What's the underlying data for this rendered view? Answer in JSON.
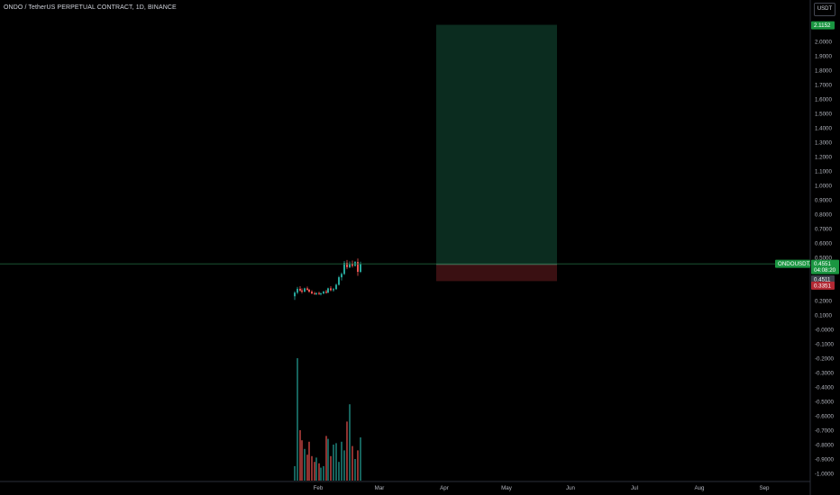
{
  "header": {
    "title": "ONDO / TetherUS PERPETUAL CONTRACT, 1D, BINANCE"
  },
  "price_axis": {
    "currency": "USDT"
  },
  "badges": {
    "target": "2.1152",
    "symbol": "ONDOUSDT.P",
    "last": "0.4551",
    "countdown": "04:08:20",
    "entry": "0.4511",
    "stop": "0.3351"
  },
  "colors": {
    "background": "#000000",
    "up": "#26a69a",
    "down": "#ef5350",
    "profit_zone": "#0b2c1f",
    "loss_zone": "#3a1012",
    "badge_green": "#1a9641",
    "badge_red": "#b22833",
    "axis_text": "#b2b5be"
  },
  "chart_data": {
    "type": "candlestick",
    "symbol": "ONDOUSDT.P",
    "timeframe": "1D",
    "exchange": "BINANCE",
    "x_ticks": [
      "Feb",
      "Mar",
      "Apr",
      "May",
      "Jun",
      "Jul",
      "Aug",
      "Sep"
    ],
    "y_ticks": [
      "2.0000",
      "1.9000",
      "1.8000",
      "1.7000",
      "1.6000",
      "1.5000",
      "1.4000",
      "1.3000",
      "1.2000",
      "1.1000",
      "1.0000",
      "0.9000",
      "0.8000",
      "0.7000",
      "0.6000",
      "0.5000",
      "0.4000",
      "0.3000",
      "0.2000",
      "0.1000",
      "-0.0000",
      "-0.1000",
      "-0.2000",
      "-0.3000",
      "-0.4000",
      "-0.5000",
      "-0.6000",
      "-0.7000",
      "-0.8000",
      "-0.9000",
      "-1.0000"
    ],
    "ylim": [
      -1.05,
      2.12
    ],
    "last_price": 0.4551,
    "position": {
      "type": "long",
      "entry": 0.4511,
      "target": 2.1152,
      "stop": 0.3351,
      "start": "Mar 19",
      "end": "Jun 15"
    },
    "candles": [
      {
        "o": 0.23,
        "h": 0.265,
        "l": 0.205,
        "c": 0.255
      },
      {
        "o": 0.255,
        "h": 0.295,
        "l": 0.245,
        "c": 0.282
      },
      {
        "o": 0.282,
        "h": 0.3,
        "l": 0.262,
        "c": 0.27
      },
      {
        "o": 0.27,
        "h": 0.285,
        "l": 0.25,
        "c": 0.262
      },
      {
        "o": 0.262,
        "h": 0.29,
        "l": 0.258,
        "c": 0.285
      },
      {
        "o": 0.285,
        "h": 0.298,
        "l": 0.268,
        "c": 0.275
      },
      {
        "o": 0.275,
        "h": 0.282,
        "l": 0.255,
        "c": 0.262
      },
      {
        "o": 0.262,
        "h": 0.272,
        "l": 0.244,
        "c": 0.25
      },
      {
        "o": 0.25,
        "h": 0.262,
        "l": 0.24,
        "c": 0.245
      },
      {
        "o": 0.245,
        "h": 0.256,
        "l": 0.238,
        "c": 0.252
      },
      {
        "o": 0.252,
        "h": 0.262,
        "l": 0.24,
        "c": 0.246
      },
      {
        "o": 0.246,
        "h": 0.256,
        "l": 0.236,
        "c": 0.25
      },
      {
        "o": 0.25,
        "h": 0.268,
        "l": 0.244,
        "c": 0.262
      },
      {
        "o": 0.262,
        "h": 0.275,
        "l": 0.248,
        "c": 0.255
      },
      {
        "o": 0.255,
        "h": 0.29,
        "l": 0.252,
        "c": 0.285
      },
      {
        "o": 0.285,
        "h": 0.3,
        "l": 0.265,
        "c": 0.272
      },
      {
        "o": 0.272,
        "h": 0.288,
        "l": 0.262,
        "c": 0.28
      },
      {
        "o": 0.28,
        "h": 0.318,
        "l": 0.275,
        "c": 0.31
      },
      {
        "o": 0.31,
        "h": 0.372,
        "l": 0.305,
        "c": 0.362
      },
      {
        "o": 0.362,
        "h": 0.395,
        "l": 0.34,
        "c": 0.385
      },
      {
        "o": 0.385,
        "h": 0.475,
        "l": 0.378,
        "c": 0.462
      },
      {
        "o": 0.462,
        "h": 0.482,
        "l": 0.418,
        "c": 0.432
      },
      {
        "o": 0.432,
        "h": 0.472,
        "l": 0.425,
        "c": 0.458
      },
      {
        "o": 0.458,
        "h": 0.478,
        "l": 0.43,
        "c": 0.442
      },
      {
        "o": 0.442,
        "h": 0.475,
        "l": 0.436,
        "c": 0.468
      },
      {
        "o": 0.468,
        "h": 0.492,
        "l": 0.372,
        "c": 0.4
      },
      {
        "o": 0.4,
        "h": 0.47,
        "l": 0.392,
        "c": 0.455
      }
    ],
    "volume_relative": [
      0.1,
      0.85,
      0.35,
      0.28,
      0.22,
      0.18,
      0.27,
      0.17,
      0.13,
      0.16,
      0.12,
      0.09,
      0.1,
      0.31,
      0.29,
      0.17,
      0.25,
      0.26,
      0.13,
      0.27,
      0.21,
      0.41,
      0.53,
      0.24,
      0.15,
      0.21,
      0.3
    ],
    "candle_x": [
      327,
      330,
      333,
      335,
      338,
      341,
      343,
      346,
      349,
      351,
      354,
      356,
      359,
      362,
      364,
      367,
      370,
      373,
      376,
      379,
      382,
      385,
      388,
      391,
      394,
      397,
      400
    ]
  }
}
